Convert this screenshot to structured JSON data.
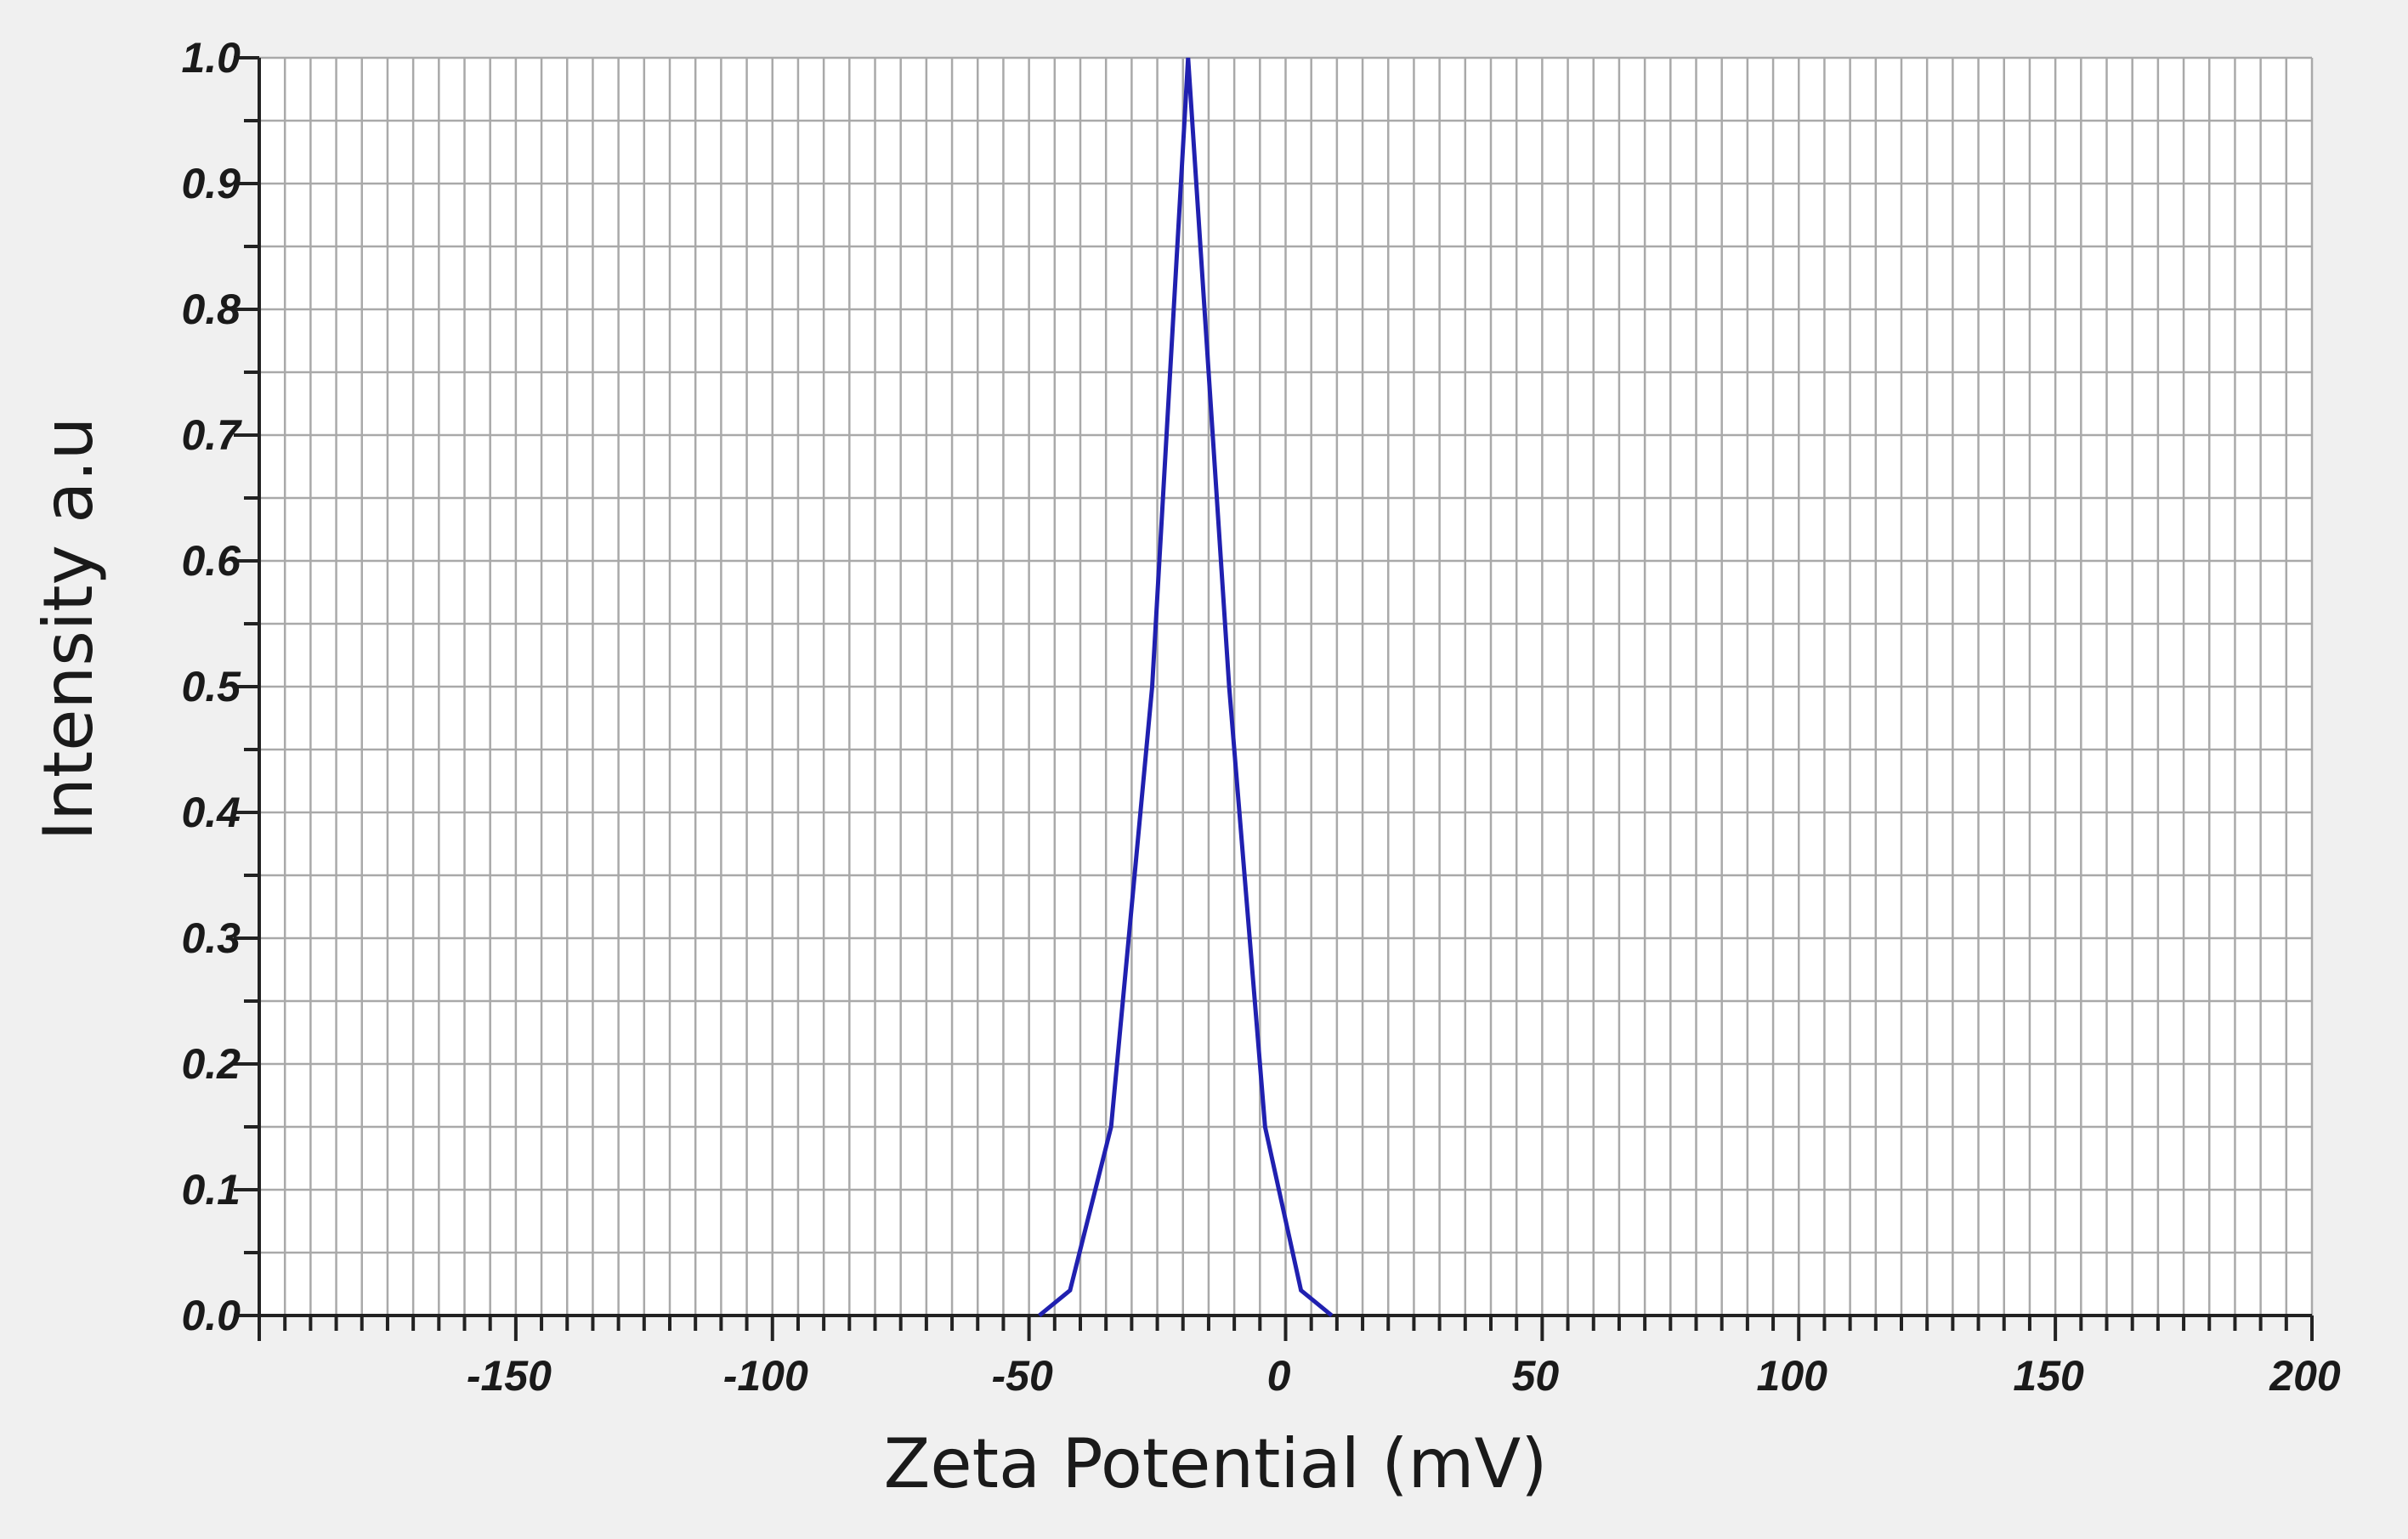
{
  "chart_data": {
    "type": "line",
    "title": "",
    "xlabel": "Zeta Potential (mV)",
    "ylabel": "Intensity a.u",
    "xlim": [
      -200,
      200
    ],
    "ylim": [
      0,
      1.0
    ],
    "x_ticks": [
      -150,
      -100,
      -50,
      0,
      50,
      100,
      150,
      200
    ],
    "x_tick_labels": [
      "-150",
      "-100",
      "-50",
      "0",
      "50",
      "100",
      "150",
      "200"
    ],
    "y_ticks": [
      0.0,
      0.1,
      0.2,
      0.3,
      0.4,
      0.5,
      0.6,
      0.7,
      0.8,
      0.9,
      1.0
    ],
    "y_tick_labels": [
      "0.0",
      "0.1",
      "0.2",
      "0.3",
      "0.4",
      "0.5",
      "0.6",
      "0.7",
      "0.8",
      "0.9",
      "1.0"
    ],
    "grid": true,
    "legend": "none",
    "series": [
      {
        "color": "#2020b0",
        "x": [
          -48,
          -42,
          -34,
          -26,
          -19,
          -11,
          -4,
          3,
          9
        ],
        "y": [
          0.0,
          0.02,
          0.15,
          0.5,
          1.0,
          0.5,
          0.15,
          0.02,
          0.0
        ]
      }
    ]
  }
}
